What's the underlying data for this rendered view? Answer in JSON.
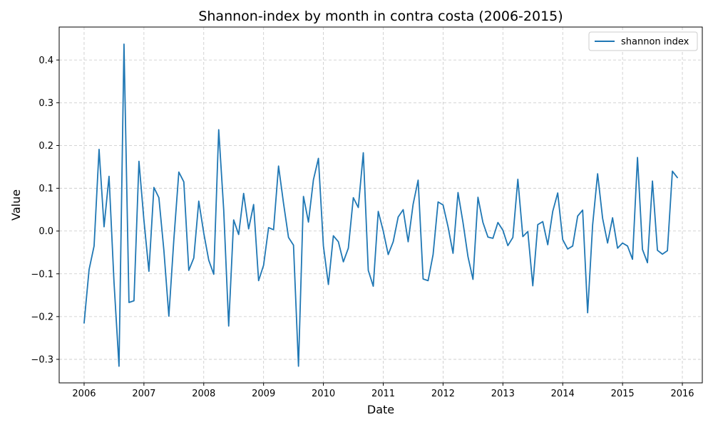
{
  "chart_data": {
    "type": "line",
    "title": "Shannon-index by month in contra costa (2006-2015)",
    "xlabel": "Date",
    "ylabel": "Value",
    "xlim": [
      "2005-08-01",
      "2016-05-01"
    ],
    "ylim": [
      -0.355,
      0.477
    ],
    "grid": true,
    "legend_position": "top-right",
    "x_ticks": [
      "2006",
      "2007",
      "2008",
      "2009",
      "2010",
      "2011",
      "2012",
      "2013",
      "2014",
      "2015",
      "2016"
    ],
    "y_ticks": [
      "−0.3",
      "−0.2",
      "−0.1",
      "0.0",
      "0.1",
      "0.2",
      "0.3",
      "0.4"
    ],
    "series": [
      {
        "name": "shannon index",
        "color": "#1f77b4",
        "x": [
          "2006-01",
          "2006-02",
          "2006-03",
          "2006-04",
          "2006-05",
          "2006-06",
          "2006-07",
          "2006-08",
          "2006-09",
          "2006-10",
          "2006-11",
          "2006-12",
          "2007-01",
          "2007-02",
          "2007-03",
          "2007-04",
          "2007-05",
          "2007-06",
          "2007-07",
          "2007-08",
          "2007-09",
          "2007-10",
          "2007-11",
          "2007-12",
          "2008-01",
          "2008-02",
          "2008-03",
          "2008-04",
          "2008-05",
          "2008-06",
          "2008-07",
          "2008-08",
          "2008-09",
          "2008-10",
          "2008-11",
          "2008-12",
          "2009-01",
          "2009-02",
          "2009-03",
          "2009-04",
          "2009-05",
          "2009-06",
          "2009-07",
          "2009-08",
          "2009-09",
          "2009-10",
          "2009-11",
          "2009-12",
          "2010-01",
          "2010-02",
          "2010-03",
          "2010-04",
          "2010-05",
          "2010-06",
          "2010-07",
          "2010-08",
          "2010-09",
          "2010-10",
          "2010-11",
          "2010-12",
          "2011-01",
          "2011-02",
          "2011-03",
          "2011-04",
          "2011-05",
          "2011-06",
          "2011-07",
          "2011-08",
          "2011-09",
          "2011-10",
          "2011-11",
          "2011-12",
          "2012-01",
          "2012-02",
          "2012-03",
          "2012-04",
          "2012-05",
          "2012-06",
          "2012-07",
          "2012-08",
          "2012-09",
          "2012-10",
          "2012-11",
          "2012-12",
          "2013-01",
          "2013-02",
          "2013-03",
          "2013-04",
          "2013-05",
          "2013-06",
          "2013-07",
          "2013-08",
          "2013-09",
          "2013-10",
          "2013-11",
          "2013-12",
          "2014-01",
          "2014-02",
          "2014-03",
          "2014-04",
          "2014-05",
          "2014-06",
          "2014-07",
          "2014-08",
          "2014-09",
          "2014-10",
          "2014-11",
          "2014-12",
          "2015-01",
          "2015-02",
          "2015-03",
          "2015-04",
          "2015-05",
          "2015-06",
          "2015-07",
          "2015-08",
          "2015-09",
          "2015-10",
          "2015-11",
          "2015-12"
        ],
        "y": [
          -0.215,
          -0.09,
          -0.035,
          0.191,
          0.01,
          0.128,
          -0.12,
          -0.316,
          0.437,
          -0.167,
          -0.163,
          0.163,
          0.025,
          -0.094,
          0.102,
          0.078,
          -0.045,
          -0.199,
          -0.02,
          0.138,
          0.115,
          -0.092,
          -0.063,
          0.07,
          -0.005,
          -0.068,
          -0.101,
          0.237,
          0.05,
          -0.222,
          0.026,
          -0.008,
          0.088,
          0.005,
          0.062,
          -0.116,
          -0.08,
          0.008,
          0.003,
          0.152,
          0.065,
          -0.015,
          -0.033,
          -0.316,
          0.081,
          0.021,
          0.12,
          0.17,
          -0.035,
          -0.125,
          -0.011,
          -0.025,
          -0.072,
          -0.04,
          0.078,
          0.055,
          0.183,
          -0.092,
          -0.129,
          0.046,
          0.0,
          -0.055,
          -0.025,
          0.033,
          0.05,
          -0.025,
          0.063,
          0.119,
          -0.112,
          -0.116,
          -0.055,
          0.068,
          0.061,
          0.01,
          -0.052,
          0.09,
          0.02,
          -0.06,
          -0.113,
          0.079,
          0.02,
          -0.014,
          -0.017,
          0.02,
          0.002,
          -0.034,
          -0.015,
          0.121,
          -0.013,
          -0.001,
          -0.128,
          0.015,
          0.022,
          -0.032,
          0.046,
          0.089,
          -0.02,
          -0.042,
          -0.035,
          0.035,
          0.049,
          -0.191,
          0.014,
          0.134,
          0.03,
          -0.028,
          0.031,
          -0.04,
          -0.028,
          -0.035,
          -0.066,
          0.172,
          -0.043,
          -0.074,
          0.117,
          -0.045,
          -0.054,
          -0.046,
          0.14,
          0.125
        ]
      }
    ]
  }
}
